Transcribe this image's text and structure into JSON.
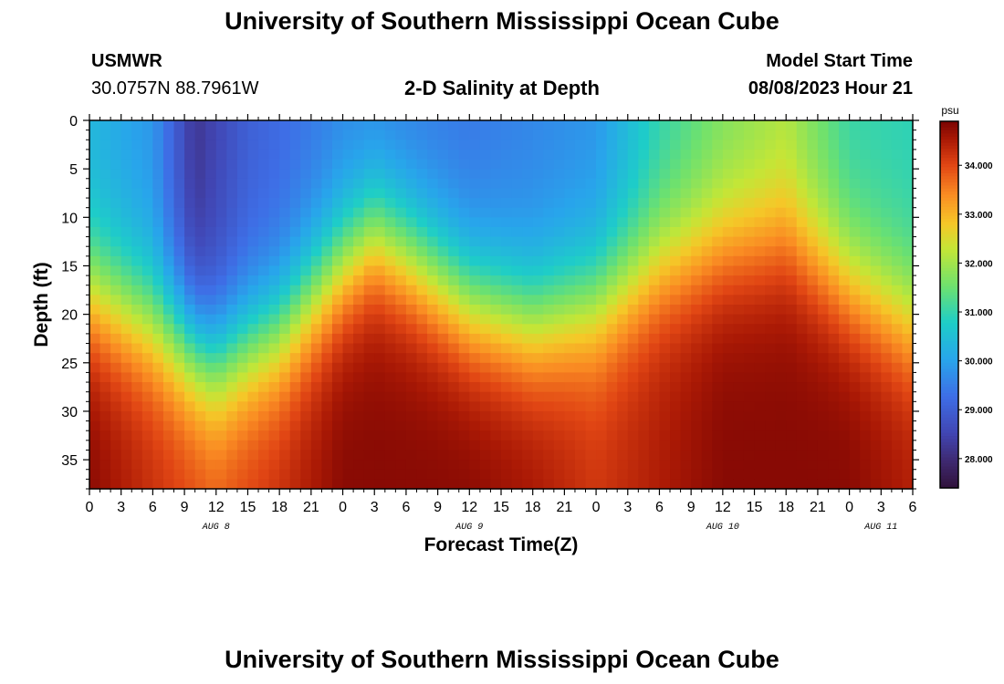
{
  "header": {
    "title": "University of Southern Mississippi Ocean Cube",
    "station": "USMWR",
    "coords": "30.0757N  88.7961W",
    "chart_title": "2-D Salinity at Depth",
    "model_start_label": "Model Start Time",
    "model_start_value": "08/08/2023 Hour 21"
  },
  "footer": {
    "title": "University of Southern Mississippi Ocean Cube"
  },
  "chart_data": {
    "type": "heatmap",
    "title": "2-D Salinity at Depth",
    "xlabel": "Forecast Time(Z)",
    "ylabel": "Depth (ft)",
    "xlim": [
      0,
      78
    ],
    "ylim": [
      0,
      38
    ],
    "x_ticks": [
      {
        "v": 0,
        "label": "0"
      },
      {
        "v": 3,
        "label": "3"
      },
      {
        "v": 6,
        "label": "6"
      },
      {
        "v": 9,
        "label": "9"
      },
      {
        "v": 12,
        "label": "12"
      },
      {
        "v": 15,
        "label": "15"
      },
      {
        "v": 18,
        "label": "18"
      },
      {
        "v": 21,
        "label": "21"
      },
      {
        "v": 24,
        "label": "0"
      },
      {
        "v": 27,
        "label": "3"
      },
      {
        "v": 30,
        "label": "6"
      },
      {
        "v": 33,
        "label": "9"
      },
      {
        "v": 36,
        "label": "12"
      },
      {
        "v": 39,
        "label": "15"
      },
      {
        "v": 42,
        "label": "18"
      },
      {
        "v": 45,
        "label": "21"
      },
      {
        "v": 48,
        "label": "0"
      },
      {
        "v": 51,
        "label": "3"
      },
      {
        "v": 54,
        "label": "6"
      },
      {
        "v": 57,
        "label": "9"
      },
      {
        "v": 60,
        "label": "12"
      },
      {
        "v": 63,
        "label": "15"
      },
      {
        "v": 66,
        "label": "18"
      },
      {
        "v": 69,
        "label": "21"
      },
      {
        "v": 72,
        "label": "0"
      },
      {
        "v": 75,
        "label": "3"
      },
      {
        "v": 78,
        "label": "6"
      }
    ],
    "date_labels": [
      {
        "v": 12,
        "label": "AUG 8"
      },
      {
        "v": 36,
        "label": "AUG 9"
      },
      {
        "v": 60,
        "label": "AUG 10"
      },
      {
        "v": 75,
        "label": "AUG 11"
      }
    ],
    "y_ticks": [
      0,
      5,
      10,
      15,
      20,
      25,
      30,
      35
    ],
    "colorbar": {
      "unit": "psu",
      "range": [
        27.4,
        34.9
      ],
      "ticks": [
        "28.000",
        "29.000",
        "30.000",
        "31.000",
        "32.000",
        "33.000",
        "34.000"
      ],
      "tick_values": [
        28,
        29,
        30,
        31,
        32,
        33,
        34
      ]
    },
    "halocline_depth_by_time": [
      {
        "t": 0,
        "depth": 18
      },
      {
        "t": 6,
        "depth": 21
      },
      {
        "t": 12,
        "depth": 25
      },
      {
        "t": 18,
        "depth": 22
      },
      {
        "t": 24,
        "depth": 15
      },
      {
        "t": 27,
        "depth": 12
      },
      {
        "t": 30,
        "depth": 14
      },
      {
        "t": 36,
        "depth": 19
      },
      {
        "t": 42,
        "depth": 21
      },
      {
        "t": 48,
        "depth": 19
      },
      {
        "t": 54,
        "depth": 15
      },
      {
        "t": 60,
        "depth": 13
      },
      {
        "t": 66,
        "depth": 12
      },
      {
        "t": 72,
        "depth": 17
      },
      {
        "t": 78,
        "depth": 21
      }
    ],
    "surface_salinity_by_time": [
      {
        "t": 0,
        "s": 30.3
      },
      {
        "t": 6,
        "s": 29.8
      },
      {
        "t": 10,
        "s": 28.2
      },
      {
        "t": 15,
        "s": 29.0
      },
      {
        "t": 24,
        "s": 29.6
      },
      {
        "t": 36,
        "s": 29.4
      },
      {
        "t": 48,
        "s": 29.8
      },
      {
        "t": 54,
        "s": 30.9
      },
      {
        "t": 60,
        "s": 31.6
      },
      {
        "t": 66,
        "s": 32.0
      },
      {
        "t": 72,
        "s": 31.0
      },
      {
        "t": 78,
        "s": 30.9
      }
    ],
    "bottom_salinity_by_time": [
      {
        "t": 0,
        "s": 34.8
      },
      {
        "t": 6,
        "s": 34.3
      },
      {
        "t": 12,
        "s": 33.9
      },
      {
        "t": 18,
        "s": 34.3
      },
      {
        "t": 24,
        "s": 34.8
      },
      {
        "t": 30,
        "s": 34.8
      },
      {
        "t": 36,
        "s": 34.8
      },
      {
        "t": 42,
        "s": 34.6
      },
      {
        "t": 48,
        "s": 34.2
      },
      {
        "t": 54,
        "s": 34.5
      },
      {
        "t": 60,
        "s": 34.8
      },
      {
        "t": 66,
        "s": 34.8
      },
      {
        "t": 72,
        "s": 34.8
      },
      {
        "t": 78,
        "s": 34.5
      }
    ]
  }
}
